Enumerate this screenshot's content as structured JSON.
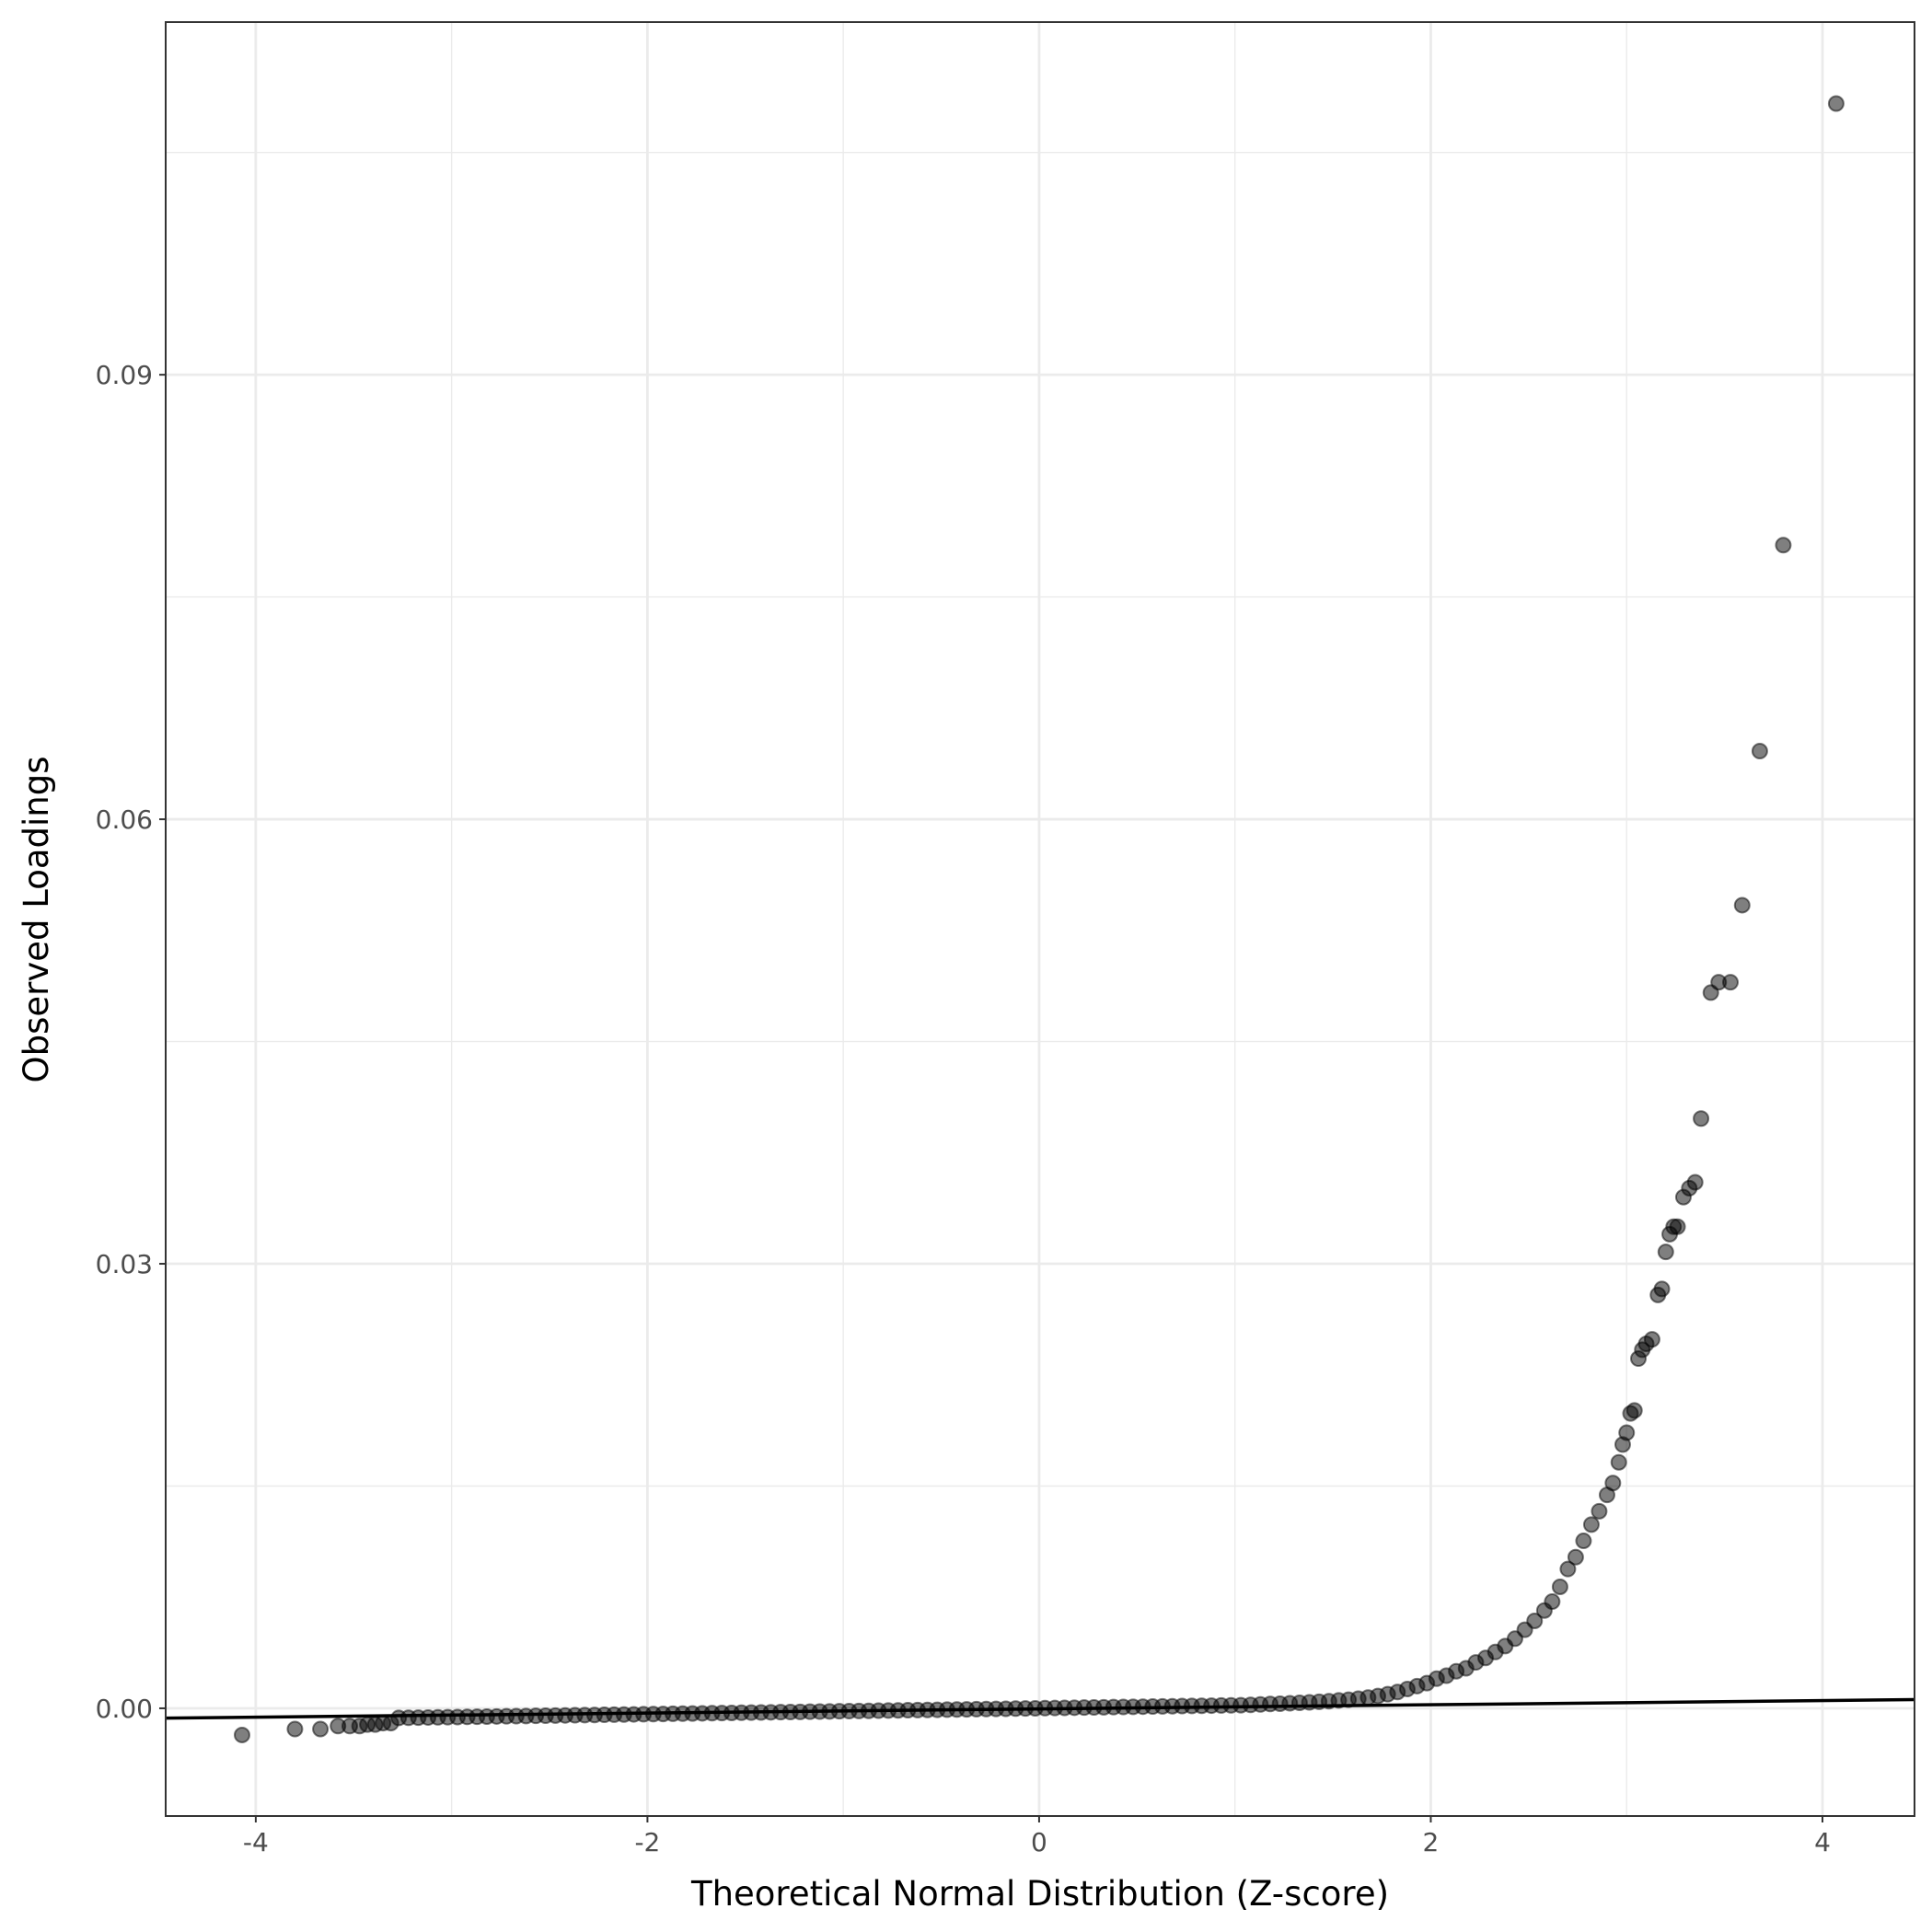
{
  "chart_data": {
    "type": "scatter",
    "title": "",
    "xlabel": "Theoretical Normal Distribution (Z-score)",
    "ylabel": "Observed Loadings",
    "xlim": [
      -4.46,
      4.47
    ],
    "ylim": [
      -0.00727,
      0.1138
    ],
    "x_ticks": [
      -4,
      -2,
      0,
      2,
      4
    ],
    "x_tick_labels": [
      "-4",
      "-2",
      "0",
      "2",
      "4"
    ],
    "y_ticks": [
      0,
      0.03,
      0.06,
      0.09
    ],
    "y_tick_labels": [
      "0.00",
      "0.03",
      "0.06",
      "0.09"
    ],
    "x_minor": [
      -3,
      -1,
      1,
      3
    ],
    "y_minor": [
      0.015,
      0.045,
      0.075,
      0.105
    ],
    "grid": true,
    "legend": "none",
    "point_color": "#000000",
    "point_alpha": 0.5,
    "reference_line": {
      "slope": 0.00014,
      "intercept": -4e-05,
      "color": "#000000"
    },
    "points": [
      [
        -4.07,
        -0.0018
      ],
      [
        -3.8,
        -0.0014
      ],
      [
        -3.67,
        -0.0014
      ],
      [
        -3.58,
        -0.0012
      ],
      [
        -3.52,
        -0.0012
      ],
      [
        -3.47,
        -0.0012
      ],
      [
        -3.43,
        -0.0011
      ],
      [
        -3.39,
        -0.0011
      ],
      [
        -3.35,
        -0.001
      ],
      [
        -3.31,
        -0.001
      ],
      [
        -3.27,
        -0.00065
      ],
      [
        -3.22,
        -0.00064
      ],
      [
        -3.17,
        -0.00063
      ],
      [
        -3.12,
        -0.00062
      ],
      [
        -3.07,
        -0.00061
      ],
      [
        -3.02,
        -0.0006
      ],
      [
        -2.97,
        -0.00059
      ],
      [
        -2.92,
        -0.00058
      ],
      [
        -2.87,
        -0.00057
      ],
      [
        -2.82,
        -0.00056
      ],
      [
        -2.77,
        -0.00055
      ],
      [
        -2.72,
        -0.00054
      ],
      [
        -2.67,
        -0.00053
      ],
      [
        -2.62,
        -0.00052
      ],
      [
        -2.57,
        -0.00051
      ],
      [
        -2.52,
        -0.0005
      ],
      [
        -2.47,
        -0.00049
      ],
      [
        -2.42,
        -0.00048
      ],
      [
        -2.37,
        -0.00047
      ],
      [
        -2.32,
        -0.00046
      ],
      [
        -2.27,
        -0.00045
      ],
      [
        -2.22,
        -0.00044
      ],
      [
        -2.17,
        -0.00043
      ],
      [
        -2.12,
        -0.00042
      ],
      [
        -2.07,
        -0.00041
      ],
      [
        -2.02,
        -0.0004
      ],
      [
        -1.97,
        -0.00039
      ],
      [
        -1.92,
        -0.00038
      ],
      [
        -1.87,
        -0.00037
      ],
      [
        -1.82,
        -0.00036
      ],
      [
        -1.77,
        -0.00035
      ],
      [
        -1.72,
        -0.00034
      ],
      [
        -1.67,
        -0.00033
      ],
      [
        -1.62,
        -0.00032
      ],
      [
        -1.57,
        -0.00031
      ],
      [
        -1.52,
        -0.0003
      ],
      [
        -1.47,
        -0.00029
      ],
      [
        -1.42,
        -0.00028
      ],
      [
        -1.37,
        -0.00027
      ],
      [
        -1.32,
        -0.00026
      ],
      [
        -1.27,
        -0.00025
      ],
      [
        -1.22,
        -0.00024
      ],
      [
        -1.17,
        -0.00023
      ],
      [
        -1.12,
        -0.00022
      ],
      [
        -1.07,
        -0.00021
      ],
      [
        -1.02,
        -0.0002
      ],
      [
        -0.97,
        -0.00019
      ],
      [
        -0.92,
        -0.00018
      ],
      [
        -0.87,
        -0.00017
      ],
      [
        -0.82,
        -0.00016
      ],
      [
        -0.77,
        -0.00015
      ],
      [
        -0.72,
        -0.00014
      ],
      [
        -0.67,
        -0.00013
      ],
      [
        -0.62,
        -0.00012
      ],
      [
        -0.57,
        -0.00011
      ],
      [
        -0.52,
        -0.0001
      ],
      [
        -0.47,
        -9e-05
      ],
      [
        -0.42,
        -8e-05
      ],
      [
        -0.37,
        -7e-05
      ],
      [
        -0.32,
        -6e-05
      ],
      [
        -0.27,
        -5e-05
      ],
      [
        -0.22,
        -4e-05
      ],
      [
        -0.17,
        -3e-05
      ],
      [
        -0.12,
        -2e-05
      ],
      [
        -0.07,
        -1e-05
      ],
      [
        -0.02,
        0.0
      ],
      [
        0.03,
        1e-05
      ],
      [
        0.08,
        2e-05
      ],
      [
        0.13,
        3e-05
      ],
      [
        0.18,
        4e-05
      ],
      [
        0.23,
        5e-05
      ],
      [
        0.28,
        6e-05
      ],
      [
        0.33,
        7e-05
      ],
      [
        0.38,
        8e-05
      ],
      [
        0.43,
        9e-05
      ],
      [
        0.48,
        0.0001
      ],
      [
        0.53,
        0.00011
      ],
      [
        0.58,
        0.00012
      ],
      [
        0.63,
        0.00013
      ],
      [
        0.68,
        0.00014
      ],
      [
        0.73,
        0.00015
      ],
      [
        0.78,
        0.00016
      ],
      [
        0.83,
        0.00017
      ],
      [
        0.88,
        0.00018
      ],
      [
        0.93,
        0.00019
      ],
      [
        0.98,
        0.0002
      ],
      [
        1.03,
        0.00021
      ],
      [
        1.08,
        0.00023
      ],
      [
        1.13,
        0.00026
      ],
      [
        1.18,
        0.00029
      ],
      [
        1.23,
        0.00031
      ],
      [
        1.28,
        0.00034
      ],
      [
        1.33,
        0.00037
      ],
      [
        1.38,
        0.0004
      ],
      [
        1.43,
        0.00044
      ],
      [
        1.48,
        0.00048
      ],
      [
        1.53,
        0.00053
      ],
      [
        1.58,
        0.00058
      ],
      [
        1.63,
        0.00065
      ],
      [
        1.68,
        0.00073
      ],
      [
        1.73,
        0.00083
      ],
      [
        1.78,
        0.00095
      ],
      [
        1.83,
        0.0011
      ],
      [
        1.88,
        0.0013
      ],
      [
        1.93,
        0.0015
      ],
      [
        1.98,
        0.0017
      ],
      [
        2.03,
        0.002
      ],
      [
        2.08,
        0.0022
      ],
      [
        2.13,
        0.0025
      ],
      [
        2.18,
        0.0027
      ],
      [
        2.23,
        0.0031
      ],
      [
        2.28,
        0.0034
      ],
      [
        2.33,
        0.0038
      ],
      [
        2.38,
        0.0042
      ],
      [
        2.43,
        0.0047
      ],
      [
        2.48,
        0.0053
      ],
      [
        2.53,
        0.0059
      ],
      [
        2.58,
        0.0066
      ],
      [
        2.62,
        0.0072
      ],
      [
        2.66,
        0.0082
      ],
      [
        2.7,
        0.0094
      ],
      [
        2.74,
        0.0102
      ],
      [
        2.78,
        0.0113
      ],
      [
        2.82,
        0.0124
      ],
      [
        2.86,
        0.0133
      ],
      [
        2.9,
        0.0144
      ],
      [
        2.93,
        0.0152
      ],
      [
        2.96,
        0.0166
      ],
      [
        2.98,
        0.0178
      ],
      [
        3.0,
        0.0186
      ],
      [
        3.02,
        0.0199
      ],
      [
        3.04,
        0.0201
      ],
      [
        3.06,
        0.0236
      ],
      [
        3.08,
        0.0242
      ],
      [
        3.1,
        0.0246
      ],
      [
        3.13,
        0.0249
      ],
      [
        3.16,
        0.0279
      ],
      [
        3.18,
        0.0283
      ],
      [
        3.2,
        0.0308
      ],
      [
        3.22,
        0.032
      ],
      [
        3.24,
        0.0325
      ],
      [
        3.26,
        0.0325
      ],
      [
        3.29,
        0.0345
      ],
      [
        3.32,
        0.0351
      ],
      [
        3.35,
        0.0355
      ],
      [
        3.38,
        0.0398
      ],
      [
        3.43,
        0.0483
      ],
      [
        3.47,
        0.049
      ],
      [
        3.53,
        0.049
      ],
      [
        3.59,
        0.0542
      ],
      [
        3.68,
        0.0646
      ],
      [
        3.8,
        0.0785
      ],
      [
        4.07,
        0.1083
      ]
    ]
  }
}
